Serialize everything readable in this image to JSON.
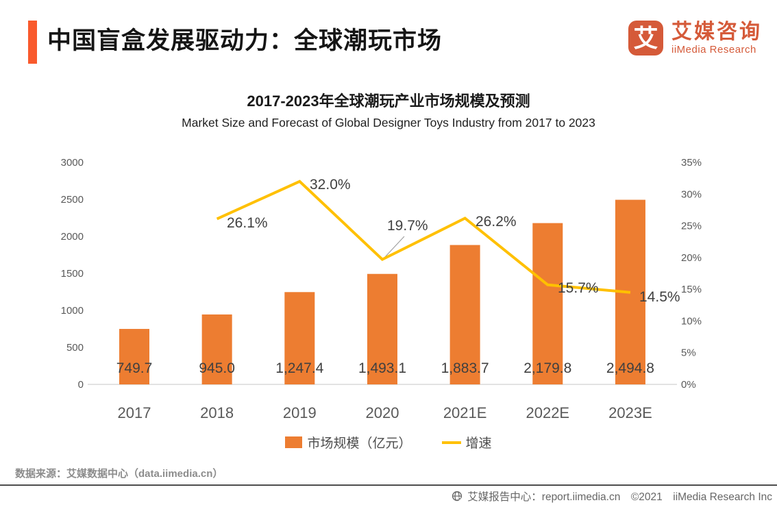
{
  "header": {
    "title": "中国盲盒发展驱动力：全球潮玩市场"
  },
  "logo": {
    "glyph": "艾",
    "name_cn": "艾媒咨询",
    "name_en": "iiMedia Research"
  },
  "chart": {
    "title": "2017-2023年全球潮玩产业市场规模及预测",
    "subtitle": "Market Size and Forecast of Global Designer Toys Industry from 2017 to 2023"
  },
  "chart_data": {
    "type": "bar+line combo",
    "categories": [
      "2017",
      "2018",
      "2019",
      "2020",
      "2021E",
      "2022E",
      "2023E"
    ],
    "series": [
      {
        "name": "市场规模（亿元）",
        "type": "bar",
        "axis": "left",
        "color": "#ED7D31",
        "values": [
          749.7,
          945.0,
          1247.4,
          1493.1,
          1883.7,
          2179.8,
          2494.8
        ],
        "labels": [
          "749.7",
          "945.0",
          "1,247.4",
          "1,493.1",
          "1,883.7",
          "2,179.8",
          "2,494.8"
        ]
      },
      {
        "name": "增速",
        "type": "line",
        "axis": "right",
        "color": "#FFC000",
        "values": [
          null,
          26.1,
          32.0,
          19.7,
          26.2,
          15.7,
          14.5
        ],
        "labels": [
          "",
          "26.1%",
          "32.0%",
          "19.7%",
          "26.2%",
          "15.7%",
          "14.5%"
        ]
      }
    ],
    "left_axis": {
      "min": 0,
      "max": 3000,
      "step": 500,
      "ticks": [
        "0",
        "500",
        "1000",
        "1500",
        "2000",
        "2500",
        "3000"
      ]
    },
    "right_axis": {
      "min": 0,
      "max": 35,
      "step": 5,
      "ticks": [
        "0%",
        "5%",
        "10%",
        "15%",
        "20%",
        "25%",
        "30%",
        "35%"
      ]
    },
    "grid": "off",
    "legend_position": "bottom-center"
  },
  "legend": [
    {
      "label": "市场规模（亿元）",
      "color": "#ED7D31",
      "marker": "square"
    },
    {
      "label": "增速",
      "color": "#FFC000",
      "marker": "line"
    }
  ],
  "source": "数据来源：艾媒数据中心（data.iimedia.cn）",
  "footer": {
    "text": "艾媒报告中心：report.iimedia.cn　©2021　iiMedia Research Inc"
  },
  "colors": {
    "accent_bar": "#F95A2D",
    "logo": "#D55A39",
    "bar": "#ED7D31",
    "line": "#FFC000",
    "axis_text": "#595959",
    "data_label_text": "#404040",
    "baseline": "#D9D9D9",
    "divider": "#4d4d4d"
  }
}
